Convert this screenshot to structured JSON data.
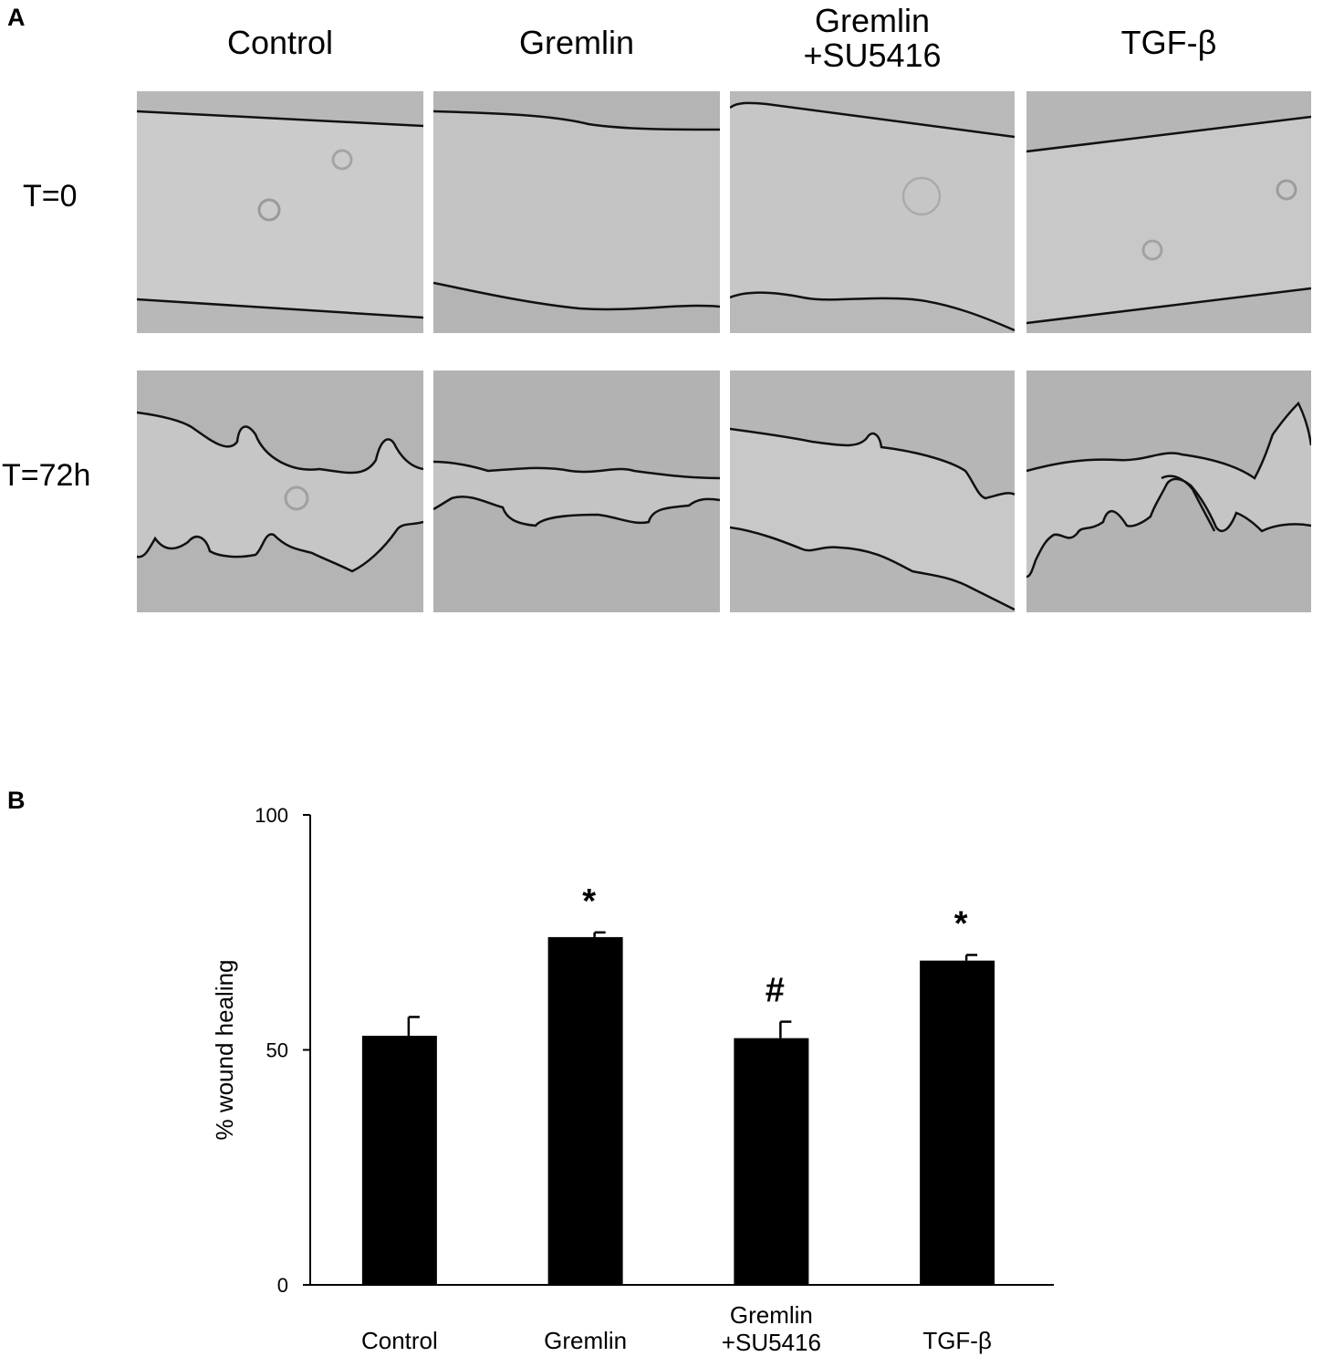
{
  "panel_a": {
    "letter": "A",
    "columns": [
      "Control",
      "Gremlin",
      "Gremlin\n+SU5416",
      "TGF-β"
    ],
    "rows": [
      "T=0",
      "T=72h"
    ]
  },
  "panel_b": {
    "letter": "B"
  },
  "chart_data": {
    "type": "bar",
    "categories": [
      "Control",
      "Gremlin",
      "Gremlin\n+SU5416",
      "TGF-β"
    ],
    "values": [
      53,
      74,
      52.5,
      69
    ],
    "errors": [
      4,
      1,
      3.5,
      1.2
    ],
    "annotations": [
      "",
      "*",
      "#",
      "*"
    ],
    "title": "",
    "xlabel": "",
    "ylabel": "% wound healing",
    "ylim": [
      0,
      100
    ],
    "yticks": [
      0,
      50,
      100
    ],
    "grid": false,
    "bar_color": "#000000"
  }
}
